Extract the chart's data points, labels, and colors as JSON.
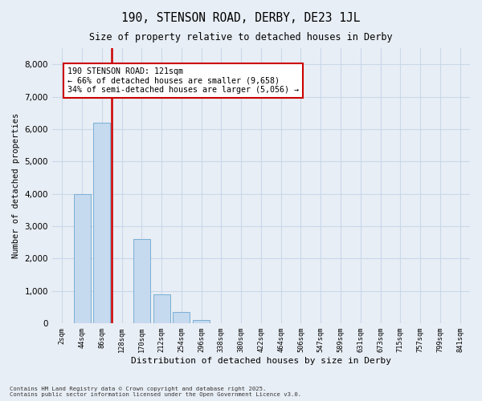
{
  "title_line1": "190, STENSON ROAD, DERBY, DE23 1JL",
  "title_line2": "Size of property relative to detached houses in Derby",
  "xlabel": "Distribution of detached houses by size in Derby",
  "ylabel": "Number of detached properties",
  "categories": [
    "2sqm",
    "44sqm",
    "86sqm",
    "128sqm",
    "170sqm",
    "212sqm",
    "254sqm",
    "296sqm",
    "338sqm",
    "380sqm",
    "422sqm",
    "464sqm",
    "506sqm",
    "547sqm",
    "589sqm",
    "631sqm",
    "673sqm",
    "715sqm",
    "757sqm",
    "799sqm",
    "841sqm"
  ],
  "values": [
    0,
    4000,
    6200,
    0,
    2600,
    900,
    350,
    100,
    0,
    0,
    0,
    0,
    0,
    0,
    0,
    0,
    0,
    0,
    0,
    0,
    0
  ],
  "bar_color": "#c5d9ef",
  "bar_edgecolor": "#7aafd4",
  "vline_color": "#cc0000",
  "vline_x_index": 2.5,
  "annotation_text": "190 STENSON ROAD: 121sqm\n← 66% of detached houses are smaller (9,658)\n34% of semi-detached houses are larger (5,056) →",
  "annotation_box_edgecolor": "#cc0000",
  "annotation_box_facecolor": "white",
  "ylim": [
    0,
    8500
  ],
  "yticks": [
    0,
    1000,
    2000,
    3000,
    4000,
    5000,
    6000,
    7000,
    8000
  ],
  "grid_color": "#c8d8ea",
  "bg_color": "#e8eef5",
  "footer_text": "Contains HM Land Registry data © Crown copyright and database right 2025.\nContains public sector information licensed under the Open Government Licence v3.0."
}
